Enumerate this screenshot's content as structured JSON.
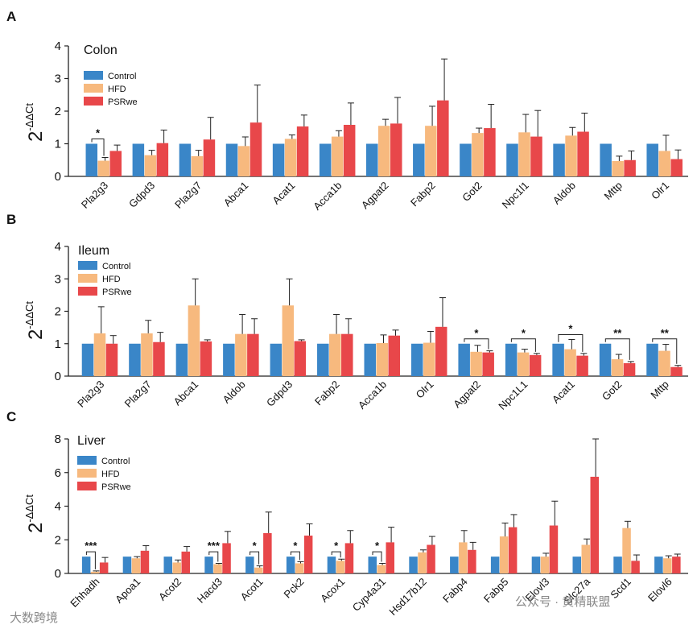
{
  "colors": {
    "control": "#3a86c8",
    "hfd": "#f7b97e",
    "psrwe": "#e8474a",
    "axis": "#222222"
  },
  "legend": [
    "Control",
    "HFD",
    "PSRwe"
  ],
  "watermark": {
    "left": "大数跨境",
    "right": "公众号 · 黄精联盟"
  },
  "chart_data": [
    {
      "panel": "A",
      "title": "Colon",
      "type": "bar",
      "ylabel": "2^-ΔΔCt",
      "ylabel_base": "2",
      "ylabel_sup": "-ΔΔCt",
      "ylim": [
        0,
        4
      ],
      "yticks": [
        0,
        1,
        2,
        3,
        4
      ],
      "categories": [
        "Pla2g3",
        "Gdpd3",
        "Pla2g7",
        "Abca1",
        "Acat1",
        "Acca1b",
        "Agpat2",
        "Fabp2",
        "Got2",
        "Npc1l1",
        "Aldob",
        "Mttp",
        "Olr1"
      ],
      "series": [
        {
          "name": "Control",
          "values": [
            1,
            1,
            1,
            1,
            1,
            1,
            1,
            1,
            1,
            1,
            1,
            1,
            1
          ],
          "errors": [
            0,
            0,
            0,
            0,
            0,
            0,
            0,
            0,
            0,
            0,
            0,
            0,
            0
          ]
        },
        {
          "name": "HFD",
          "values": [
            0.48,
            0.65,
            0.62,
            0.93,
            1.15,
            1.22,
            1.55,
            1.55,
            1.33,
            1.35,
            1.25,
            0.47,
            0.78
          ],
          "errors": [
            0.1,
            0.15,
            0.18,
            0.28,
            0.12,
            0.18,
            0.2,
            0.6,
            0.15,
            0.55,
            0.25,
            0.15,
            0.48
          ]
        },
        {
          "name": "PSRwe",
          "values": [
            0.78,
            1.02,
            1.13,
            1.65,
            1.53,
            1.58,
            1.62,
            2.33,
            1.48,
            1.22,
            1.37,
            0.5,
            0.53
          ],
          "errors": [
            0.18,
            0.4,
            0.68,
            1.15,
            0.35,
            0.67,
            0.8,
            1.27,
            0.73,
            0.8,
            0.57,
            0.28,
            0.28
          ]
        }
      ],
      "annotations": [
        {
          "category": "Pla2g3",
          "label": "*",
          "pair": [
            "Control",
            "HFD"
          ]
        }
      ]
    },
    {
      "panel": "B",
      "title": "Ileum",
      "type": "bar",
      "ylabel": "2^-ΔΔCt",
      "ylabel_base": "2",
      "ylabel_sup": "-ΔΔCt",
      "ylim": [
        0,
        4
      ],
      "yticks": [
        0,
        1,
        2,
        3,
        4
      ],
      "categories": [
        "Pla2g3",
        "Pla2g7",
        "Abca1",
        "Aldob",
        "Gdpd3",
        "Fabp2",
        "Acca1b",
        "Olr1",
        "Agpat2",
        "Npc1L1",
        "Acat1",
        "Got2",
        "Mttp"
      ],
      "series": [
        {
          "name": "Control",
          "values": [
            1,
            1,
            1,
            1,
            1,
            1,
            1,
            1,
            1,
            1,
            1,
            1,
            1
          ],
          "errors": [
            0,
            0,
            0,
            0,
            0,
            0,
            0,
            0,
            0,
            0,
            0,
            0,
            0
          ]
        },
        {
          "name": "HFD",
          "values": [
            1.32,
            1.32,
            2.18,
            1.3,
            2.18,
            1.3,
            1.02,
            1.03,
            0.75,
            0.73,
            0.83,
            0.52,
            0.78
          ],
          "errors": [
            0.82,
            0.4,
            0.82,
            0.6,
            0.82,
            0.6,
            0.25,
            0.35,
            0.2,
            0.1,
            0.3,
            0.15,
            0.2
          ]
        },
        {
          "name": "PSRwe",
          "values": [
            1.0,
            1.05,
            1.07,
            1.3,
            1.08,
            1.3,
            1.25,
            1.52,
            0.73,
            0.65,
            0.63,
            0.4,
            0.28
          ],
          "errors": [
            0.25,
            0.3,
            0.05,
            0.47,
            0.04,
            0.47,
            0.17,
            0.9,
            0.05,
            0.05,
            0.07,
            0.05,
            0.05
          ]
        }
      ],
      "annotations": [
        {
          "category": "Agpat2",
          "label": "*",
          "pair": [
            "Control",
            "PSRwe"
          ]
        },
        {
          "category": "Npc1L1",
          "label": "*",
          "pair": [
            "Control",
            "PSRwe"
          ]
        },
        {
          "category": "Acat1",
          "label": "*",
          "pair": [
            "Control",
            "PSRwe"
          ]
        },
        {
          "category": "Got2",
          "label": "**",
          "pair": [
            "Control",
            "PSRwe"
          ]
        },
        {
          "category": "Mttp",
          "label": "**",
          "pair": [
            "Control",
            "PSRwe"
          ]
        }
      ]
    },
    {
      "panel": "C",
      "title": "Liver",
      "type": "bar",
      "ylabel": "2^-ΔΔCt",
      "ylabel_base": "2",
      "ylabel_sup": "-ΔΔCt",
      "ylim": [
        0,
        8
      ],
      "yticks": [
        0,
        2,
        4,
        6,
        8
      ],
      "categories": [
        "Ehhadh",
        "Apoa1",
        "Acot2",
        "Hacd3",
        "Acot1",
        "Pck2",
        "Acox1",
        "Cyp4a31",
        "Hsd17b12",
        "Fabp4",
        "Fabp5",
        "Elovl3",
        "Slc27a",
        "Scd1",
        "Elovl6"
      ],
      "series": [
        {
          "name": "Control",
          "values": [
            1,
            1,
            1,
            1,
            1,
            1,
            1,
            1,
            1,
            1,
            1,
            1,
            1,
            1,
            1
          ],
          "errors": [
            0,
            0,
            0,
            0,
            0,
            0,
            0,
            0,
            0,
            0,
            0,
            0,
            0,
            0,
            0
          ]
        },
        {
          "name": "HFD",
          "values": [
            0.1,
            0.9,
            0.65,
            0.55,
            0.35,
            0.6,
            0.75,
            0.5,
            1.25,
            1.85,
            2.2,
            1.0,
            1.7,
            2.7,
            0.9
          ],
          "errors": [
            0.05,
            0.1,
            0.15,
            0.05,
            0.1,
            0.1,
            0.1,
            0.1,
            0.15,
            0.7,
            0.8,
            0.2,
            0.35,
            0.4,
            0.15
          ]
        },
        {
          "name": "PSRwe",
          "values": [
            0.65,
            1.35,
            1.3,
            1.8,
            2.4,
            2.25,
            1.8,
            1.85,
            1.7,
            1.4,
            2.75,
            2.85,
            5.75,
            0.75,
            1.0
          ],
          "errors": [
            0.3,
            0.3,
            0.3,
            0.7,
            1.25,
            0.7,
            0.75,
            0.9,
            0.5,
            0.45,
            0.75,
            1.45,
            2.25,
            0.35,
            0.15
          ]
        }
      ],
      "annotations": [
        {
          "category": "Ehhadh",
          "label": "***",
          "pair": [
            "Control",
            "HFD"
          ]
        },
        {
          "category": "Hacd3",
          "label": "***",
          "pair": [
            "Control",
            "HFD"
          ]
        },
        {
          "category": "Acot1",
          "label": "*",
          "pair": [
            "Control",
            "HFD"
          ]
        },
        {
          "category": "Pck2",
          "label": "*",
          "pair": [
            "Control",
            "HFD"
          ]
        },
        {
          "category": "Acox1",
          "label": "*",
          "pair": [
            "Control",
            "HFD"
          ]
        },
        {
          "category": "Cyp4a31",
          "label": "*",
          "pair": [
            "Control",
            "HFD"
          ]
        }
      ]
    }
  ]
}
